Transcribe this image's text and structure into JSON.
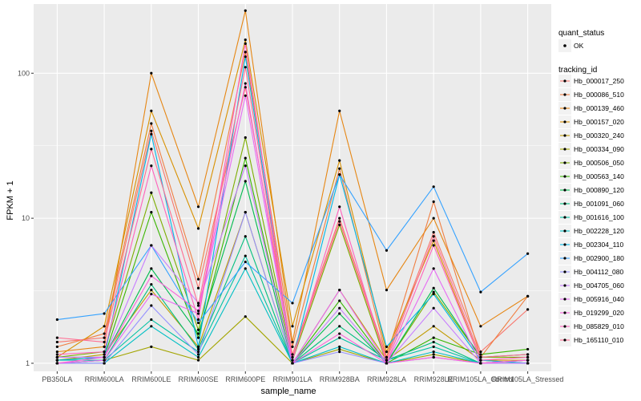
{
  "chart_data": {
    "type": "line",
    "xlabel": "sample_name",
    "ylabel": "FPKM + 1",
    "y_scale": "log10",
    "ylim": [
      0.88,
      300
    ],
    "y_ticks": [
      1,
      10,
      100
    ],
    "y_tick_labels": [
      "1",
      "10",
      "100"
    ],
    "categories": [
      "PB350LA",
      "RRIM600LA",
      "RRIM600LE",
      "RRIM600SE",
      "RRIM600PE",
      "RRIM901LA",
      "RRIM928BA",
      "RRIM928LA",
      "RRIM928LE",
      "RRIM105LA_Control",
      "RRIM105LA_Stressed"
    ],
    "grid": true,
    "panel_background": "#ebebeb",
    "point_color": "#000000",
    "legend_position": "right",
    "legend_quant": {
      "title": "quant_status",
      "entries": [
        "OK"
      ]
    },
    "legend_title": "tracking_id",
    "series": [
      {
        "name": "Hb_000017_250",
        "color": "#F8766D",
        "values": [
          1.4,
          1.5,
          40,
          3.3,
          80,
          1.15,
          10,
          1.1,
          8,
          1.2,
          2.35
        ]
      },
      {
        "name": "Hb_000086_510",
        "color": "#F07F42",
        "values": [
          1.3,
          1.6,
          45,
          3.8,
          140,
          1.3,
          22,
          1.1,
          13,
          1.1,
          2.9
        ]
      },
      {
        "name": "Hb_000139_460",
        "color": "#E68613",
        "values": [
          1.2,
          1.3,
          100,
          12,
          270,
          1.4,
          55,
          3.2,
          10,
          1.8,
          2.9
        ]
      },
      {
        "name": "Hb_000157_020",
        "color": "#D89000",
        "values": [
          1.1,
          1.8,
          55,
          8.5,
          170,
          1.8,
          25,
          1.2,
          7,
          1.05,
          1.05
        ]
      },
      {
        "name": "Hb_000320_240",
        "color": "#C09B00",
        "values": [
          1.05,
          1.15,
          3.2,
          1.3,
          11,
          1.0,
          3.2,
          1.05,
          1.8,
          1.05,
          1.0
        ]
      },
      {
        "name": "Hb_000334_090",
        "color": "#A3A500",
        "values": [
          1.0,
          1.05,
          1.3,
          1.05,
          2.1,
          1.0,
          1.25,
          1.0,
          1.15,
          1.0,
          1.05
        ]
      },
      {
        "name": "Hb_000506_050",
        "color": "#7CAE00",
        "values": [
          1.1,
          1.2,
          15,
          1.7,
          36,
          1.05,
          9,
          1.0,
          3.1,
          1.1,
          1.1
        ]
      },
      {
        "name": "Hb_000563_140",
        "color": "#39B600",
        "values": [
          1.05,
          1.1,
          11,
          1.5,
          26,
          1.0,
          2.7,
          1.0,
          1.5,
          1.15,
          1.25
        ]
      },
      {
        "name": "Hb_000890_120",
        "color": "#00BB4E",
        "values": [
          1.1,
          1.1,
          4.5,
          1.6,
          18,
          1.0,
          2.2,
          1.0,
          3.3,
          1.1,
          1.15
        ]
      },
      {
        "name": "Hb_001091_060",
        "color": "#00BF7D",
        "values": [
          1.0,
          1.05,
          3.5,
          1.25,
          7.5,
          1.0,
          1.8,
          1.05,
          1.4,
          1.0,
          1.0
        ]
      },
      {
        "name": "Hb_001616_100",
        "color": "#00C1A3",
        "values": [
          1.05,
          1.05,
          2.0,
          1.2,
          5.5,
          1.0,
          1.5,
          1.05,
          1.3,
          1.0,
          1.05
        ]
      },
      {
        "name": "Hb_002228_120",
        "color": "#00BFC4",
        "values": [
          1.0,
          1.0,
          1.8,
          1.1,
          4.5,
          1.0,
          1.3,
          1.0,
          1.2,
          1.0,
          1.0
        ]
      },
      {
        "name": "Hb_002304_110",
        "color": "#00B8E7",
        "values": [
          1.05,
          1.1,
          38,
          1.3,
          130,
          1.05,
          20,
          1.3,
          3.0,
          1.05,
          1.0
        ]
      },
      {
        "name": "Hb_002900_180",
        "color": "#35A2FF",
        "values": [
          2.0,
          2.2,
          6.5,
          1.9,
          5.0,
          2.6,
          20,
          6.0,
          16.5,
          3.1,
          5.7
        ]
      },
      {
        "name": "Hb_004112_080",
        "color": "#9590FF",
        "values": [
          1.0,
          1.0,
          2.5,
          1.15,
          11,
          1.0,
          1.2,
          1.0,
          1.1,
          1.0,
          1.0
        ]
      },
      {
        "name": "Hb_004705_060",
        "color": "#C77CFF",
        "values": [
          1.1,
          1.1,
          6.5,
          2.6,
          23,
          1.0,
          2.4,
          1.0,
          2.4,
          1.0,
          1.0
        ]
      },
      {
        "name": "Hb_005916_040",
        "color": "#E76BF3",
        "values": [
          1.0,
          1.05,
          3.0,
          2.2,
          70,
          1.0,
          3.2,
          1.0,
          4.5,
          1.0,
          1.05
        ]
      },
      {
        "name": "Hb_019299_020",
        "color": "#FA62DB",
        "values": [
          1.0,
          1.1,
          4.0,
          2.3,
          85,
          1.0,
          1.6,
          1.0,
          1.1,
          1.0,
          1.05
        ]
      },
      {
        "name": "Hb_085829_010",
        "color": "#FF62BC",
        "values": [
          1.15,
          1.2,
          23,
          2.0,
          160,
          1.05,
          12,
          1.0,
          6.5,
          1.05,
          1.1
        ]
      },
      {
        "name": "Hb_165110_010",
        "color": "#FF6C91",
        "values": [
          1.5,
          1.4,
          30,
          2.5,
          110,
          1.1,
          9.5,
          1.05,
          7.5,
          1.1,
          1.15
        ]
      }
    ]
  }
}
